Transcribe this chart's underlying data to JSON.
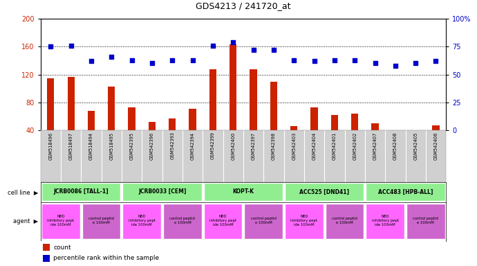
{
  "title": "GDS4213 / 241720_at",
  "gsm_labels": [
    "GSM518496",
    "GSM518497",
    "GSM518494",
    "GSM518495",
    "GSM542395",
    "GSM542396",
    "GSM542393",
    "GSM542394",
    "GSM542399",
    "GSM542400",
    "GSM542397",
    "GSM542398",
    "GSM542403",
    "GSM542404",
    "GSM542401",
    "GSM542402",
    "GSM542407",
    "GSM542408",
    "GSM542405",
    "GSM542406"
  ],
  "counts": [
    115,
    117,
    68,
    103,
    73,
    52,
    57,
    71,
    127,
    163,
    127,
    110,
    46,
    73,
    62,
    64,
    50,
    38,
    40,
    47
  ],
  "percentiles": [
    75,
    76,
    62,
    66,
    63,
    60,
    63,
    63,
    76,
    79,
    72,
    72,
    63,
    62,
    63,
    63,
    60,
    58,
    60,
    62
  ],
  "cell_lines": [
    {
      "label": "JCRB0086 [TALL-1]",
      "start": 0,
      "end": 3,
      "color": "#90ee90"
    },
    {
      "label": "JCRB0033 [CEM]",
      "start": 4,
      "end": 7,
      "color": "#90ee90"
    },
    {
      "label": "KOPT-K",
      "start": 8,
      "end": 11,
      "color": "#90ee90"
    },
    {
      "label": "ACC525 [DND41]",
      "start": 12,
      "end": 15,
      "color": "#90ee90"
    },
    {
      "label": "ACC483 [HPB-ALL]",
      "start": 16,
      "end": 19,
      "color": "#90ee90"
    }
  ],
  "agents": [
    {
      "label": "NBD\ninhibitory pept\nide 100mM",
      "start": 0,
      "end": 1,
      "color": "#ee82ee"
    },
    {
      "label": "control peptid\ne 100mM",
      "start": 2,
      "end": 3,
      "color": "#dda0dd"
    },
    {
      "label": "NBD\ninhibitory pept\nide 100mM",
      "start": 4,
      "end": 5,
      "color": "#ee82ee"
    },
    {
      "label": "control peptid\ne 100mM",
      "start": 6,
      "end": 7,
      "color": "#dda0dd"
    },
    {
      "label": "NBD\ninhibitory pept\nide 100mM",
      "start": 8,
      "end": 9,
      "color": "#ee82ee"
    },
    {
      "label": "control peptid\ne 100mM",
      "start": 10,
      "end": 11,
      "color": "#dda0dd"
    },
    {
      "label": "NBD\ninhibitory pept\nide 100mM",
      "start": 12,
      "end": 13,
      "color": "#ee82ee"
    },
    {
      "label": "control peptid\ne 100mM",
      "start": 14,
      "end": 15,
      "color": "#dda0dd"
    },
    {
      "label": "NBD\ninhibitory pept\nide 100mM",
      "start": 16,
      "end": 17,
      "color": "#ee82ee"
    },
    {
      "label": "control peptid\ne 100mM",
      "start": 18,
      "end": 19,
      "color": "#dda0dd"
    }
  ],
  "ylim_left": [
    40,
    200
  ],
  "ylim_right": [
    0,
    100
  ],
  "yticks_left": [
    40,
    80,
    120,
    160,
    200
  ],
  "yticks_right": [
    0,
    25,
    50,
    75,
    100
  ],
  "bar_color": "#cc2200",
  "dot_color": "#0000cc",
  "gsm_bg_color": "#d0d0d0",
  "cellline_border_color": "#aaaaaa",
  "agent_nbd_color": "#ff66ff",
  "agent_ctrl_color": "#cc66cc"
}
